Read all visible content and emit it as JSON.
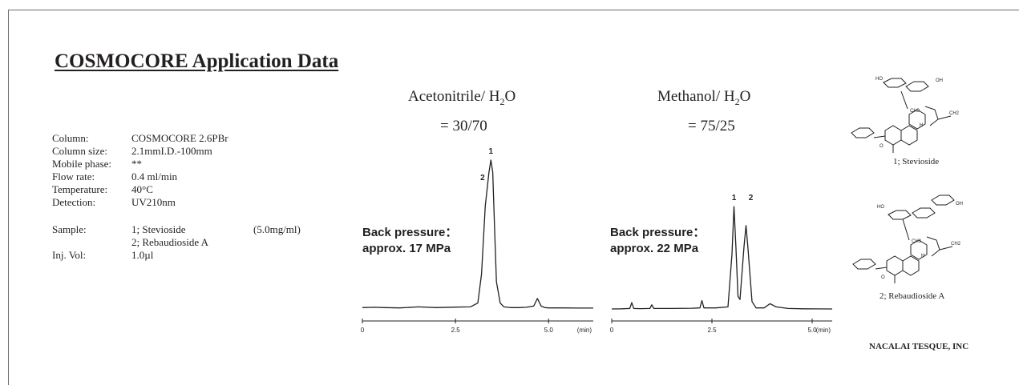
{
  "title": "COSMOCORE Application Data",
  "conditions": [
    {
      "label": "Column:",
      "value": "COSMOCORE 2.6PBr"
    },
    {
      "label": "Column size:",
      "value": "2.1mmI.D.-100mm"
    },
    {
      "label": "Mobile phase:",
      "value": "**"
    },
    {
      "label": "Flow rate:",
      "value": "0.4 ml/min"
    },
    {
      "label": "Temperature:",
      "value": "40°C"
    },
    {
      "label": "Detection:",
      "value": "UV210nm"
    }
  ],
  "sample": {
    "label": "Sample:",
    "items": [
      "1; Stevioside",
      "2; Rebaudioside A"
    ],
    "concentration": "(5.0mg/ml)"
  },
  "injection": {
    "label": "Inj. Vol:",
    "value": "1.0µl"
  },
  "company": "NACALAI TESQUE, INC",
  "structures": {
    "stevioside": "1; Stevioside",
    "rebaudioside": "2; Rebaudioside A"
  },
  "structure_atom_labels": [
    "HO",
    "OH",
    "CH3",
    "CH2",
    "H",
    "O"
  ],
  "colors": {
    "trace": "#231f20",
    "text": "#231f20",
    "frame": "#6d6d6d"
  },
  "chart_data": [
    {
      "type": "line",
      "solvent_prefix": "Acetonitrile/ H",
      "solvent_sub": "2",
      "solvent_suffix": "O",
      "ratio": "= 30/70",
      "back_pressure_label": "Back pressure：",
      "back_pressure_value": "approx. 17 MPa",
      "x_unit": "(min)",
      "xlim": [
        0,
        6.2
      ],
      "x_ticks": [
        0,
        2.5,
        5.0
      ],
      "x_tick_labels": [
        "0",
        "2.5",
        "5.0"
      ],
      "ylim": [
        0,
        100
      ],
      "grid": false,
      "peak_labels": [
        {
          "label": "1",
          "x": 3.45,
          "y": 100
        },
        {
          "label": "2",
          "x": 3.4,
          "y": 88
        }
      ],
      "x": [
        0,
        0.3,
        0.6,
        1.0,
        1.5,
        2.0,
        2.5,
        2.9,
        3.1,
        3.2,
        3.3,
        3.4,
        3.45,
        3.5,
        3.55,
        3.6,
        3.7,
        3.8,
        3.9,
        4.0,
        4.2,
        4.4,
        4.6,
        4.7,
        4.8,
        4.9,
        5.0,
        5.4,
        5.8,
        6.2
      ],
      "y": [
        3,
        3.2,
        3,
        2.8,
        3.5,
        3,
        3.3,
        3.5,
        6,
        25,
        70,
        92,
        100,
        92,
        55,
        20,
        6,
        3.5,
        3.2,
        3,
        3,
        3.2,
        4,
        9,
        4,
        3,
        2.8,
        2.8,
        2.7,
        2.7
      ]
    },
    {
      "type": "line",
      "solvent_prefix": "Methanol/ H",
      "solvent_sub": "2",
      "solvent_suffix": "O",
      "ratio": "= 75/25",
      "back_pressure_label": "Back pressure：",
      "back_pressure_value": "approx. 22 MPa",
      "x_unit": "(min)",
      "xlim": [
        0,
        5.5
      ],
      "x_ticks": [
        0,
        2.5,
        5.0
      ],
      "x_tick_labels": [
        "0",
        "2.5",
        "5.0"
      ],
      "ylim": [
        0,
        100
      ],
      "grid": false,
      "peak_labels": [
        {
          "label": "1",
          "x": 3.05,
          "y": 100
        },
        {
          "label": "2",
          "x": 3.35,
          "y": 100
        }
      ],
      "x": [
        0,
        0.25,
        0.45,
        0.5,
        0.55,
        0.7,
        0.95,
        1.0,
        1.05,
        1.5,
        2.0,
        2.2,
        2.25,
        2.3,
        2.6,
        2.9,
        3.0,
        3.05,
        3.1,
        3.15,
        3.2,
        3.3,
        3.35,
        3.4,
        3.5,
        3.6,
        3.8,
        3.95,
        4.1,
        4.4,
        4.8,
        5.5
      ],
      "y": [
        3,
        3.2,
        3.5,
        9,
        3.5,
        3.3,
        3.5,
        7,
        3.5,
        3.5,
        3.7,
        4,
        11,
        4,
        4,
        5,
        55,
        100,
        60,
        15,
        12,
        62,
        82,
        60,
        10,
        4,
        4,
        8,
        5,
        3.5,
        3.2,
        3
      ]
    }
  ]
}
